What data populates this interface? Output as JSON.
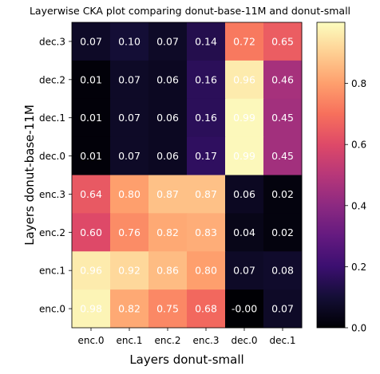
{
  "chart_data": {
    "type": "heatmap",
    "title": "Layerwise CKA plot comparing donut-base-11M and donut-small",
    "xlabel": "Layers donut-small",
    "ylabel": "Layers donut-base-11M",
    "x_categories": [
      "enc.0",
      "enc.1",
      "enc.2",
      "enc.3",
      "dec.0",
      "dec.1"
    ],
    "y_categories": [
      "dec.3",
      "dec.2",
      "dec.1",
      "dec.0",
      "enc.3",
      "enc.2",
      "enc.1",
      "enc.0"
    ],
    "values": [
      [
        0.07,
        0.1,
        0.07,
        0.14,
        0.72,
        0.65
      ],
      [
        0.01,
        0.07,
        0.06,
        0.16,
        0.96,
        0.46
      ],
      [
        0.01,
        0.07,
        0.06,
        0.16,
        0.99,
        0.45
      ],
      [
        0.01,
        0.07,
        0.06,
        0.17,
        0.99,
        0.45
      ],
      [
        0.64,
        0.8,
        0.87,
        0.87,
        0.06,
        0.02
      ],
      [
        0.6,
        0.76,
        0.82,
        0.83,
        0.04,
        0.02
      ],
      [
        0.96,
        0.92,
        0.86,
        0.8,
        0.07,
        0.08
      ],
      [
        0.98,
        0.82,
        0.75,
        0.68,
        -0.0,
        0.07
      ]
    ],
    "value_labels": [
      [
        "0.07",
        "0.10",
        "0.07",
        "0.14",
        "0.72",
        "0.65"
      ],
      [
        "0.01",
        "0.07",
        "0.06",
        "0.16",
        "0.96",
        "0.46"
      ],
      [
        "0.01",
        "0.07",
        "0.06",
        "0.16",
        "0.99",
        "0.45"
      ],
      [
        "0.01",
        "0.07",
        "0.06",
        "0.17",
        "0.99",
        "0.45"
      ],
      [
        "0.64",
        "0.80",
        "0.87",
        "0.87",
        "0.06",
        "0.02"
      ],
      [
        "0.60",
        "0.76",
        "0.82",
        "0.83",
        "0.04",
        "0.02"
      ],
      [
        "0.96",
        "0.92",
        "0.86",
        "0.80",
        "0.07",
        "0.08"
      ],
      [
        "0.98",
        "0.82",
        "0.75",
        "0.68",
        "-0.00",
        "0.07"
      ]
    ],
    "colormap": "magma",
    "color_range": [
      0,
      1
    ],
    "colorbar": {
      "ticks": [
        0.0,
        0.2,
        0.4,
        0.6,
        0.8
      ],
      "tick_labels": [
        "0.0",
        "0.2",
        "0.4",
        "0.6",
        "0.8"
      ],
      "placement": "right"
    },
    "grid": false,
    "cell_text_color": "#ffffff"
  }
}
